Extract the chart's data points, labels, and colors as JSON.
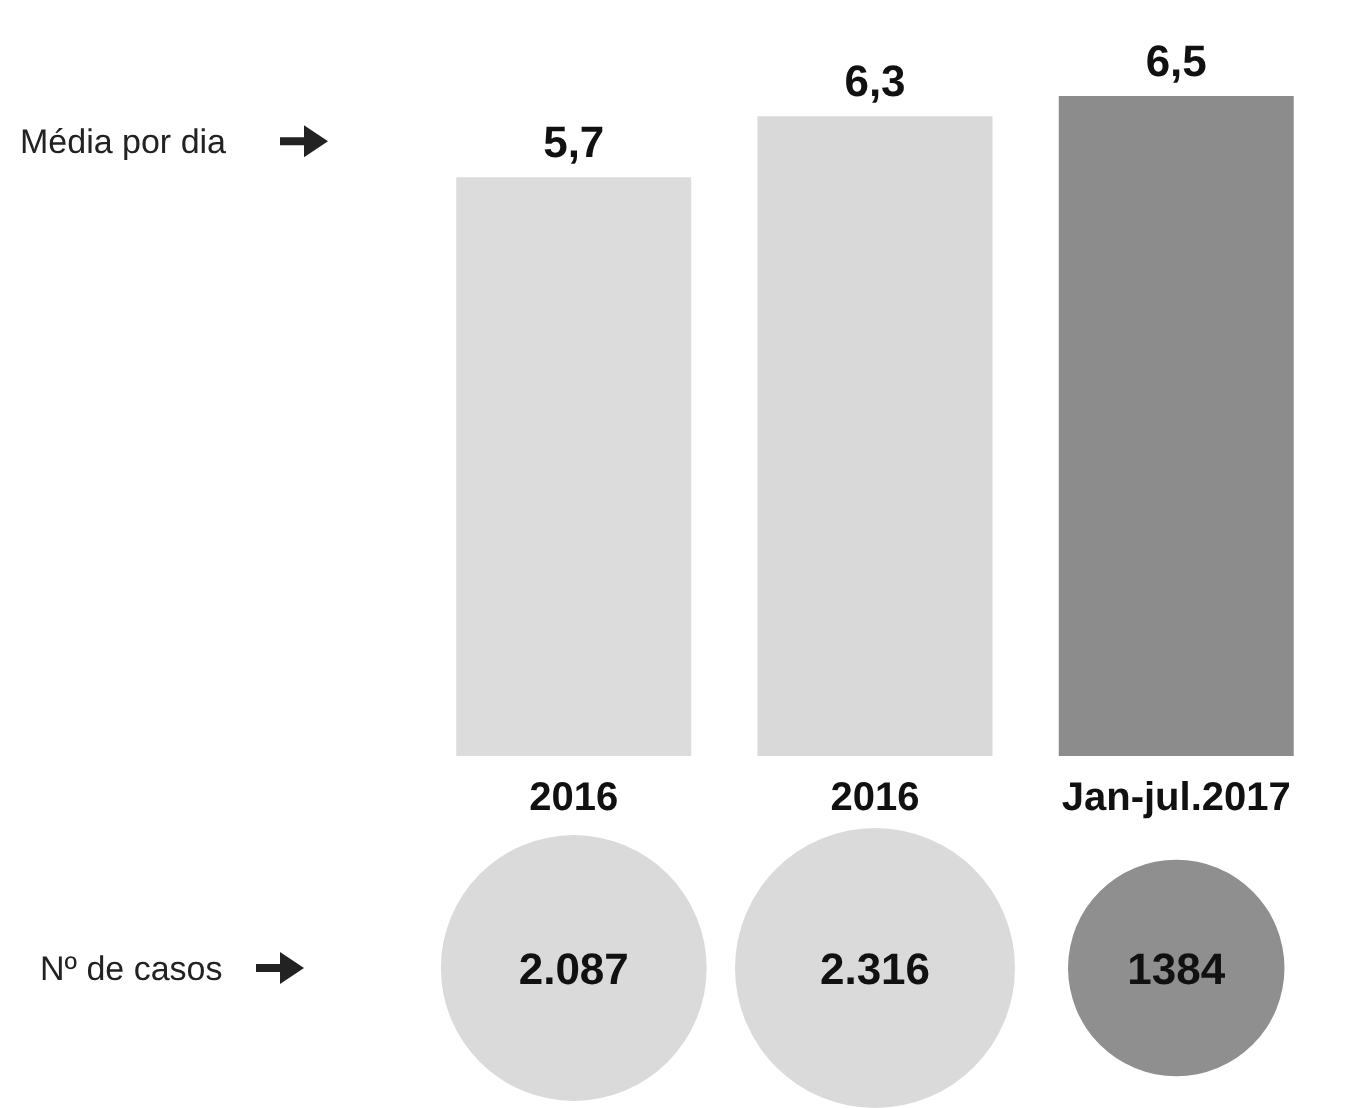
{
  "chart_data": [
    {
      "type": "bar",
      "ylabel": "Média por dia",
      "categories": [
        "2016",
        "2016",
        "Jan-jul.2017"
      ],
      "values": [
        5.7,
        6.3,
        6.5
      ],
      "value_labels": [
        "5,7",
        "6,3",
        "6,5"
      ],
      "colors": [
        "#dcdcdc",
        "#d9d9d9",
        "#8c8c8c"
      ]
    },
    {
      "type": "other",
      "ylabel": "Nº de casos",
      "values": [
        2087,
        2316,
        1384
      ],
      "value_labels": [
        "2.087",
        "2.316",
        "1384"
      ],
      "colors": [
        "#dadada",
        "#dadada",
        "#8f8f8f"
      ]
    }
  ]
}
